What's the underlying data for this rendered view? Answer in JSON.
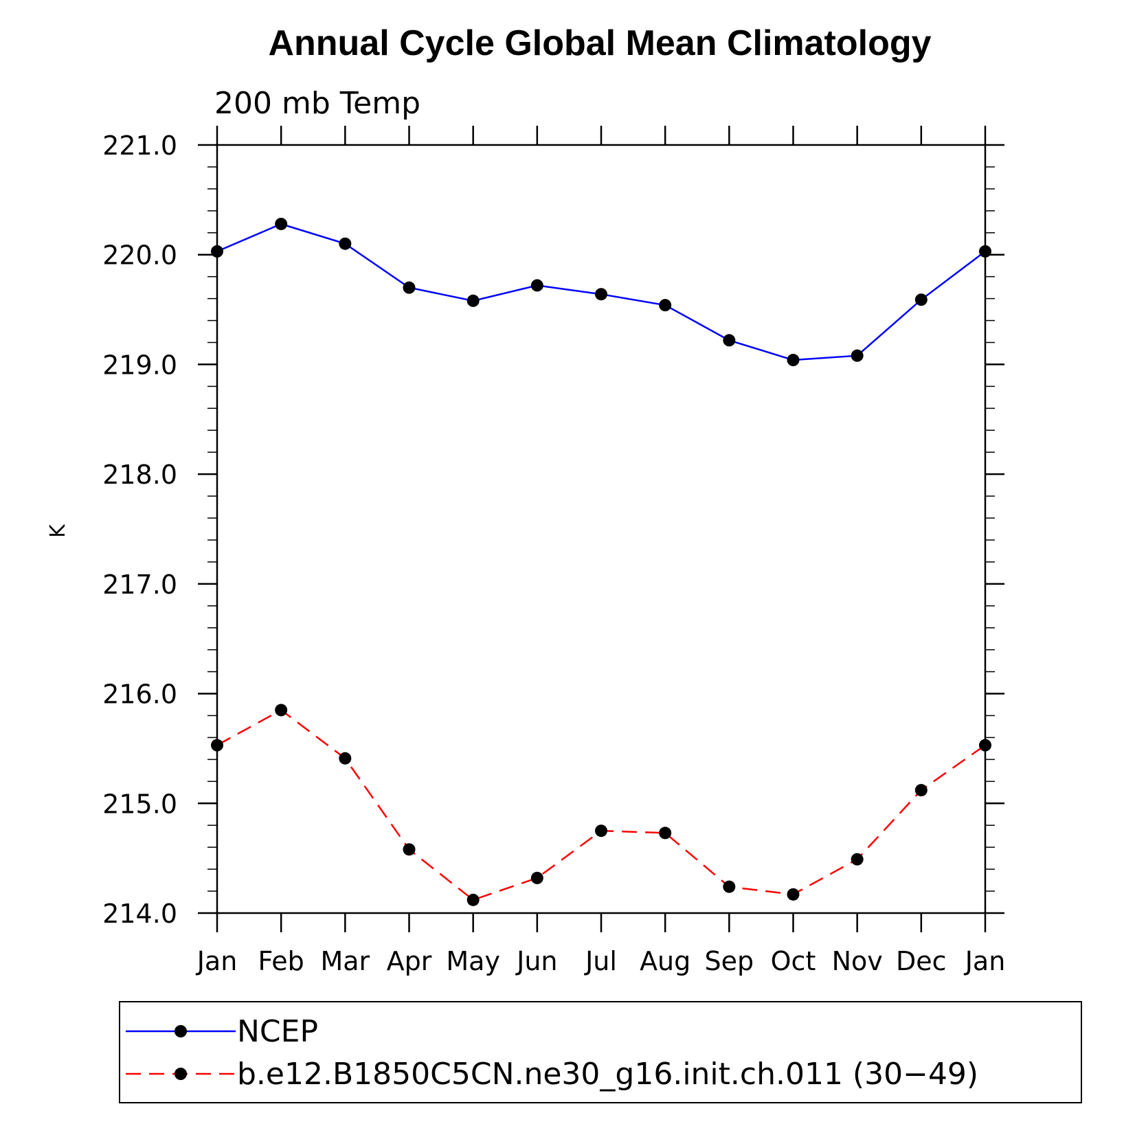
{
  "chart_data": {
    "type": "line",
    "title": "Annual Cycle Global Mean Climatology",
    "subtitle": "200 mb Temp",
    "ylabel": "K",
    "xlabel": "",
    "categories": [
      "Jan",
      "Feb",
      "Mar",
      "Apr",
      "May",
      "Jun",
      "Jul",
      "Aug",
      "Sep",
      "Oct",
      "Nov",
      "Dec",
      "Jan"
    ],
    "ylim": [
      214.0,
      221.0
    ],
    "yticks": [
      "214.0",
      "215.0",
      "216.0",
      "217.0",
      "218.0",
      "219.0",
      "220.0",
      "221.0"
    ],
    "ytick_values": [
      214,
      215,
      216,
      217,
      218,
      219,
      220,
      221
    ],
    "yminor_step": 0.2,
    "grid": false,
    "legend_position": "bottom",
    "series": [
      {
        "name": "NCEP",
        "color": "#0000ff",
        "dash": "solid",
        "values": [
          220.03,
          220.28,
          220.1,
          219.7,
          219.58,
          219.72,
          219.64,
          219.54,
          219.22,
          219.04,
          219.08,
          219.59,
          220.03
        ]
      },
      {
        "name": "b.e12.B1850C5CN.ne30_g16.init.ch.011 (30−49)",
        "color": "#ff0000",
        "dash": "dashed",
        "values": [
          215.53,
          215.85,
          215.41,
          214.58,
          214.12,
          214.32,
          214.75,
          214.73,
          214.24,
          214.17,
          214.49,
          215.12,
          215.53
        ]
      }
    ]
  }
}
